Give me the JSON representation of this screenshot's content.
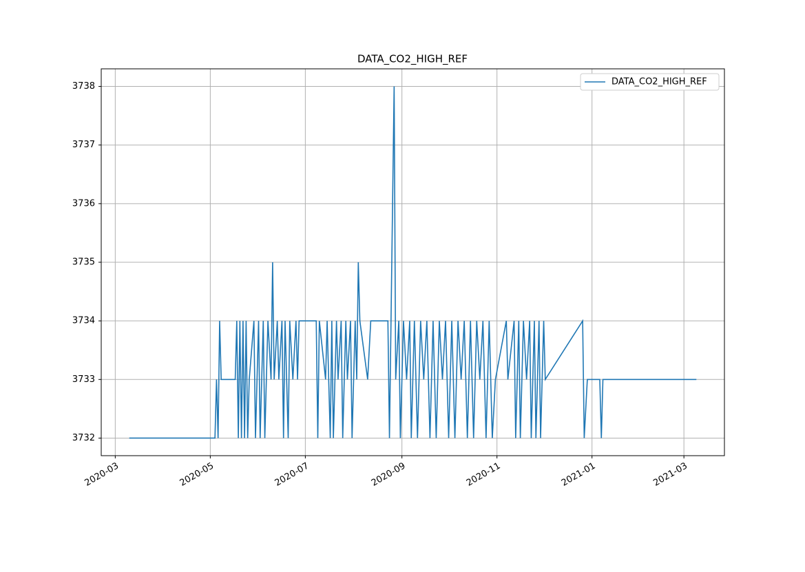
{
  "chart_data": {
    "type": "line",
    "title": "DATA_CO2_HIGH_REF",
    "x": [
      "2020-03-10",
      "2020-05-04",
      "2020-05-05",
      "2020-05-06",
      "2020-05-07",
      "2020-05-08",
      "2020-05-17",
      "2020-05-18",
      "2020-05-19",
      "2020-05-20",
      "2020-05-21",
      "2020-05-22",
      "2020-05-23",
      "2020-05-24",
      "2020-05-25",
      "2020-05-26",
      "2020-05-29",
      "2020-05-30",
      "2020-06-01",
      "2020-06-02",
      "2020-06-04",
      "2020-06-05",
      "2020-06-07",
      "2020-06-09",
      "2020-06-10",
      "2020-06-11",
      "2020-06-13",
      "2020-06-14",
      "2020-06-16",
      "2020-06-17",
      "2020-06-18",
      "2020-06-20",
      "2020-06-21",
      "2020-06-23",
      "2020-06-25",
      "2020-06-26",
      "2020-06-27",
      "2020-07-08",
      "2020-07-09",
      "2020-07-10",
      "2020-07-14",
      "2020-07-15",
      "2020-07-17",
      "2020-07-18",
      "2020-07-19",
      "2020-07-21",
      "2020-07-22",
      "2020-07-24",
      "2020-07-25",
      "2020-07-27",
      "2020-07-28",
      "2020-07-30",
      "2020-07-31",
      "2020-08-02",
      "2020-08-03",
      "2020-08-04",
      "2020-08-05",
      "2020-08-10",
      "2020-08-12",
      "2020-08-23",
      "2020-08-24",
      "2020-08-25",
      "2020-08-27",
      "2020-08-28",
      "2020-08-30",
      "2020-08-31",
      "2020-09-02",
      "2020-09-04",
      "2020-09-06",
      "2020-09-07",
      "2020-09-09",
      "2020-09-11",
      "2020-09-13",
      "2020-09-15",
      "2020-09-17",
      "2020-09-19",
      "2020-09-21",
      "2020-09-23",
      "2020-09-25",
      "2020-09-27",
      "2020-09-29",
      "2020-10-01",
      "2020-10-03",
      "2020-10-05",
      "2020-10-07",
      "2020-10-09",
      "2020-10-11",
      "2020-10-13",
      "2020-10-15",
      "2020-10-17",
      "2020-10-19",
      "2020-10-21",
      "2020-10-23",
      "2020-10-25",
      "2020-10-27",
      "2020-10-29",
      "2020-10-31",
      "2020-11-07",
      "2020-11-08",
      "2020-11-12",
      "2020-11-13",
      "2020-11-15",
      "2020-11-16",
      "2020-11-18",
      "2020-11-20",
      "2020-11-22",
      "2020-11-23",
      "2020-11-25",
      "2020-11-26",
      "2020-11-28",
      "2020-11-29",
      "2020-12-01",
      "2020-12-02",
      "2020-12-26",
      "2020-12-27",
      "2020-12-28",
      "2020-12-29",
      "2021-01-06",
      "2021-01-07",
      "2021-01-08",
      "2021-03-09"
    ],
    "series": [
      {
        "name": "DATA_CO2_HIGH_REF",
        "color": "#1f77b4",
        "values": [
          3732,
          3732,
          3733,
          3732,
          3734,
          3733,
          3733,
          3734,
          3732,
          3734,
          3732,
          3734,
          3732,
          3734,
          3732,
          3733,
          3734,
          3732,
          3734,
          3732,
          3734,
          3732,
          3734,
          3733,
          3735,
          3733,
          3734,
          3733,
          3734,
          3732,
          3734,
          3732,
          3734,
          3733,
          3734,
          3733,
          3734,
          3734,
          3732,
          3734,
          3733,
          3734,
          3732,
          3734,
          3732,
          3734,
          3733,
          3734,
          3732,
          3734,
          3733,
          3734,
          3732,
          3734,
          3733,
          3735,
          3734,
          3733,
          3734,
          3734,
          3732,
          3734,
          3738,
          3733,
          3734,
          3732,
          3734,
          3733,
          3734,
          3732,
          3734,
          3732,
          3734,
          3733,
          3734,
          3732,
          3734,
          3732,
          3734,
          3733,
          3734,
          3732,
          3734,
          3732,
          3734,
          3733,
          3734,
          3732,
          3734,
          3732,
          3734,
          3733,
          3734,
          3732,
          3734,
          3732,
          3733,
          3734,
          3733,
          3734,
          3732,
          3734,
          3732,
          3734,
          3733,
          3734,
          3732,
          3734,
          3732,
          3734,
          3732,
          3734,
          3733,
          3734,
          3732,
          3732.5,
          3733,
          3733,
          3732,
          3733,
          3733
        ]
      }
    ],
    "xlim": [
      "2020-02-21",
      "2021-03-27"
    ],
    "xticks": [
      {
        "value": "2020-03-01",
        "label": "2020-03"
      },
      {
        "value": "2020-05-01",
        "label": "2020-05"
      },
      {
        "value": "2020-07-01",
        "label": "2020-07"
      },
      {
        "value": "2020-09-01",
        "label": "2020-09"
      },
      {
        "value": "2020-11-01",
        "label": "2020-11"
      },
      {
        "value": "2021-01-01",
        "label": "2021-01"
      },
      {
        "value": "2021-03-01",
        "label": "2021-03"
      }
    ],
    "ylim": [
      3731.7,
      3738.3
    ],
    "yticks": [
      3732,
      3733,
      3734,
      3735,
      3736,
      3737,
      3738
    ],
    "grid": true,
    "legend": "upper right"
  }
}
